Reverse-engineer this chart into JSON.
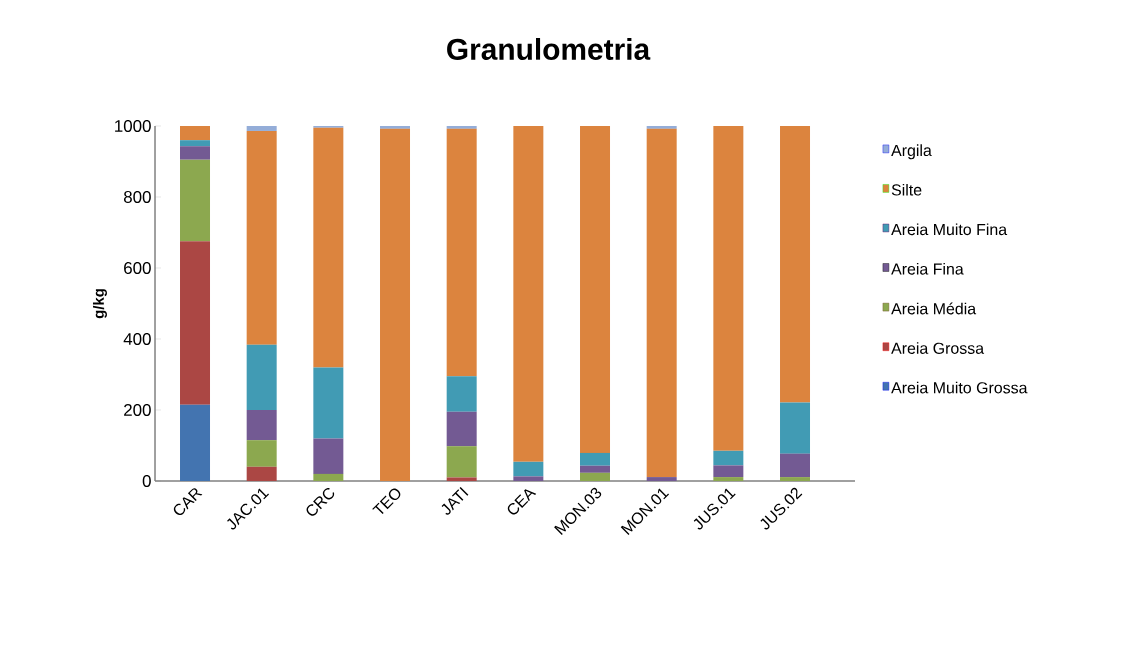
{
  "chart_data": {
    "type": "bar",
    "title": "Granulometria",
    "ylabel": "g/kg",
    "stacked": true,
    "legend": "right",
    "grid": false,
    "categories": [
      "CAR",
      "JAC.01",
      "CRC",
      "TEO",
      "JATI",
      "CEA",
      "MON.03",
      "MON.01",
      "JUS.01",
      "JUS.02"
    ],
    "ylim": [
      0,
      1000
    ],
    "yticks": [
      0,
      200,
      400,
      600,
      800,
      1000
    ],
    "series": [
      {
        "name": "Areia Muito Grossa",
        "color": "#4374b0",
        "values": [
          215,
          0,
          0,
          0,
          0,
          0,
          0,
          0,
          0,
          0
        ]
      },
      {
        "name": "Areia Grossa",
        "color": "#ab4744",
        "values": [
          460,
          40,
          0,
          0,
          10,
          0,
          0,
          0,
          0,
          0
        ]
      },
      {
        "name": "Areia Média",
        "color": "#8ca84f",
        "values": [
          230,
          75,
          20,
          0,
          88,
          0,
          23,
          0,
          11,
          11
        ]
      },
      {
        "name": "Areia Fina",
        "color": "#735a93",
        "values": [
          38,
          85,
          100,
          0,
          97,
          13,
          20,
          11,
          33,
          66
        ]
      },
      {
        "name": "Areia Muito Fina",
        "color": "#419bb4",
        "values": [
          17,
          184,
          200,
          0,
          100,
          41,
          36,
          0,
          41,
          144
        ]
      },
      {
        "name": "Silte",
        "color": "#dc843e",
        "values": [
          40,
          602,
          675,
          992,
          697,
          946,
          921,
          981,
          915,
          779
        ]
      },
      {
        "name": "Argila",
        "color": "#94add8",
        "values": [
          0,
          14,
          5,
          8,
          8,
          0,
          0,
          8,
          0,
          0
        ]
      }
    ]
  }
}
